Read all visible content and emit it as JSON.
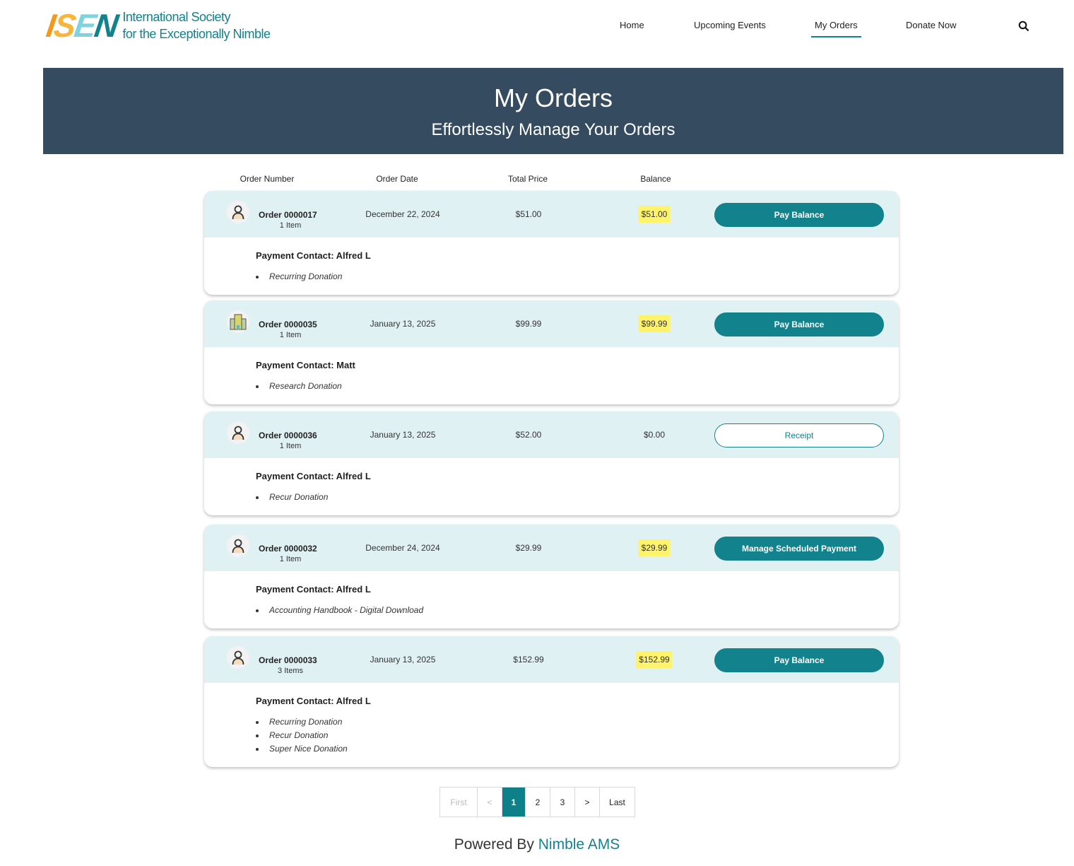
{
  "logo": {
    "mark": "ISEN",
    "line1": "International Society",
    "line2": "for the Exceptionally Nimble"
  },
  "nav": [
    {
      "label": "Home"
    },
    {
      "label": "Upcoming Events"
    },
    {
      "label": "My Orders",
      "active": true
    },
    {
      "label": "Donate Now"
    }
  ],
  "search_icon": "search-icon",
  "hero": {
    "title": "My Orders",
    "subtitle": "Effortlessly Manage Your Orders"
  },
  "columns": [
    "Order Number",
    "Order Date",
    "Total Price",
    "Balance"
  ],
  "highlight_color": "#fff36b",
  "accent": "#12828c",
  "orders": [
    {
      "number": "Order 0000017",
      "items": "1 Item",
      "date": "December 22, 2024",
      "total": "$51.00",
      "balance": "$51.00",
      "has_balance": true,
      "avatar": "person-icon",
      "action": "Pay Balance",
      "contact": "Payment Contact: Alfred L",
      "lines": [
        "Recurring Donation"
      ]
    },
    {
      "number": "Order 0000035",
      "items": "1 Item",
      "date": "January 13, 2025",
      "total": "$99.99",
      "balance": "$99.99",
      "has_balance": true,
      "avatar": "building-icon",
      "action": "Pay Balance",
      "contact": "Payment Contact: Matt",
      "lines": [
        "Research Donation"
      ]
    },
    {
      "number": "Order 0000036",
      "items": "1 Item",
      "date": "January 13, 2025",
      "total": "$52.00",
      "balance": "$0.00",
      "has_balance": false,
      "avatar": "person-icon",
      "action": "Receipt",
      "contact": "Payment Contact: Alfred L",
      "lines": [
        "Recur Donation"
      ]
    },
    {
      "number": "Order 0000032",
      "items": "1 Item",
      "date": "December 24, 2024",
      "total": "$29.99",
      "balance": "$29.99",
      "has_balance": true,
      "avatar": "person-icon",
      "action": "Manage Scheduled Payment",
      "contact": "Payment Contact: Alfred L",
      "lines": [
        "Accounting Handbook - Digital Download"
      ]
    },
    {
      "number": "Order 0000033",
      "items": "3 Items",
      "date": "January 13, 2025",
      "total": "$152.99",
      "balance": "$152.99",
      "has_balance": true,
      "avatar": "person-icon",
      "action": "Pay Balance",
      "contact": "Payment Contact: Alfred L",
      "lines": [
        "Recurring Donation",
        "Recur Donation",
        "Super Nice Donation"
      ]
    }
  ],
  "pagination": {
    "first": "First",
    "prev": "<",
    "pages": [
      "1",
      "2",
      "3"
    ],
    "current": "1",
    "next": ">",
    "last": "Last"
  },
  "footer": {
    "prefix": "Powered By",
    "brand": "Nimble AMS"
  }
}
